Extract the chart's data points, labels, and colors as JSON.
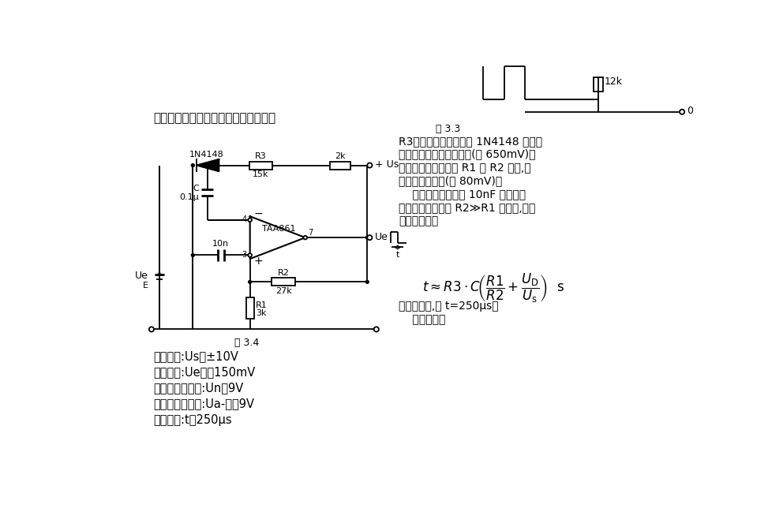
{
  "bg_color": "#ffffff",
  "font_color": "#000000",
  "line_color": "#000000",
  "title": "稳态时单稳输出高电平。反相输入端接",
  "fig33_label": "图 3.3",
  "fig34_label": "图 3.4",
  "right_lines": [
    "R3反馈电阻并由二极管 1N4148 钳位在",
    "二极管正向压降的数值上(约 650mV)。",
    "同相输入端接在电阻 R1 和 R2 之间,有",
    "很小的正电压值(约 80mV)。",
    "    输入信号的下沿经 10nF 电容送入",
    "使放大器翻转。在 R2≫R1 条件下,延迟",
    "时间即脉宽为"
  ],
  "bottom_lines": [
    "如图中参数,则 t=250μs。",
    "    技术参数："
  ],
  "tech_lines": [
    "电源电压:Us＝±10V",
    "翻转电压:Ue＝－150mV",
    "稳态时输出电压:Un＝9V",
    "翻转时输出电压:Ua-＝－9V",
    "延迟时间:t＝250μs"
  ]
}
